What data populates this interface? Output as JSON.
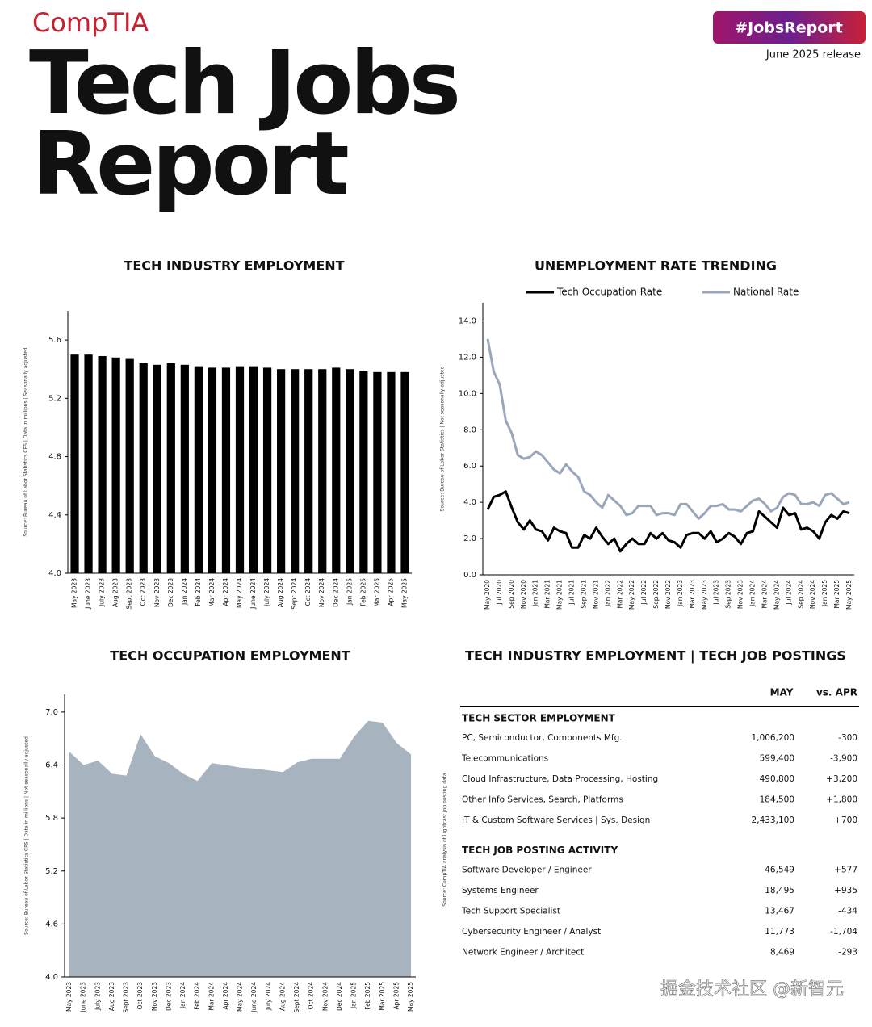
{
  "header": {
    "logo": "CompTIA",
    "title_lines": [
      "Tech Jobs",
      "Report"
    ],
    "badge": "#JobsReport",
    "release": "June 2025 release"
  },
  "chart_data": [
    {
      "type": "bar",
      "title": "TECH INDUSTRY EMPLOYMENT",
      "y_label": "Source: Bureau of Labor Statistics CES | Data in millions | Seasonally adjusted",
      "categories": [
        "May 2023",
        "June 2023",
        "July 2023",
        "Aug 2023",
        "Sept 2023",
        "Oct 2023",
        "Nov 2023",
        "Dec 2023",
        "Jan 2024",
        "Feb 2024",
        "Mar 2024",
        "Apr 2024",
        "May 2024",
        "June 2024",
        "July 2024",
        "Aug 2024",
        "Sept 2024",
        "Oct 2024",
        "Nov 2024",
        "Dec 2024",
        "Jan 2025",
        "Feb 2025",
        "Mar 2025",
        "Apr 2025",
        "May 2025"
      ],
      "values": [
        5.5,
        5.5,
        5.49,
        5.48,
        5.47,
        5.44,
        5.43,
        5.44,
        5.43,
        5.42,
        5.41,
        5.41,
        5.42,
        5.42,
        5.41,
        5.4,
        5.4,
        5.4,
        5.4,
        5.41,
        5.4,
        5.39,
        5.38,
        5.38,
        5.38
      ],
      "color": "#000000",
      "ylim": [
        4.0,
        5.8
      ],
      "yticks": [
        {
          "value": 4,
          "label": "4.0"
        },
        4.4,
        4.8,
        5.2,
        5.6
      ]
    },
    {
      "type": "line",
      "title": "UNEMPLOYMENT RATE TRENDING",
      "y_label": "Source: Bureau of Labor Statistics | Not seasonally adjusted",
      "categories": [
        "May 2020",
        null,
        "Jul 2020",
        null,
        "Sep 2020",
        null,
        "Nov 2020",
        null,
        "Jan 2021",
        null,
        "Mar 2021",
        null,
        "May 2021",
        null,
        "Jul 2021",
        null,
        "Sep 2021",
        null,
        "Nov 2021",
        null,
        "Jan 2022",
        null,
        "Mar 2022",
        null,
        "May 2022",
        null,
        "Jul 2022",
        null,
        "Sep 2022",
        null,
        "Nov 2022",
        null,
        "Jan 2023",
        null,
        "Mar 2023",
        null,
        "May 2023",
        null,
        "Jul 2023",
        null,
        "Sep 2023",
        null,
        "Nov 2023",
        null,
        "Jan 2024",
        null,
        "Mar 2024",
        null,
        "May 2024",
        null,
        "Jul 2024",
        null,
        "Sep 2024",
        null,
        "Nov 2024",
        null,
        "Jan 2025",
        null,
        "Mar 2025",
        null,
        "May 2025"
      ],
      "series": [
        {
          "name": "Tech Occupation Rate",
          "color": "#000000",
          "values": [
            3.6,
            4.3,
            4.4,
            4.6,
            3.7,
            2.9,
            2.5,
            3.0,
            2.5,
            2.4,
            1.9,
            2.6,
            2.4,
            2.3,
            1.5,
            1.5,
            2.2,
            2.0,
            2.6,
            2.1,
            1.7,
            2.0,
            1.3,
            1.7,
            2.0,
            1.7,
            1.7,
            2.3,
            2.0,
            2.3,
            1.9,
            1.8,
            1.5,
            2.2,
            2.3,
            2.3,
            2.0,
            2.4,
            1.8,
            2.0,
            2.3,
            2.1,
            1.7,
            2.3,
            2.4,
            3.5,
            3.2,
            2.9,
            2.6,
            3.7,
            3.3,
            3.4,
            2.5,
            2.6,
            2.4,
            2.0,
            2.9,
            3.3,
            3.1,
            3.5,
            3.4
          ]
        },
        {
          "name": "National Rate",
          "color": "#9aa7b8",
          "values": [
            13.0,
            11.2,
            10.5,
            8.5,
            7.8,
            6.6,
            6.4,
            6.5,
            6.8,
            6.6,
            6.2,
            5.8,
            5.6,
            6.1,
            5.7,
            5.4,
            4.6,
            4.4,
            4.0,
            3.7,
            4.4,
            4.1,
            3.8,
            3.3,
            3.4,
            3.8,
            3.8,
            3.8,
            3.3,
            3.4,
            3.4,
            3.3,
            3.9,
            3.9,
            3.5,
            3.1,
            3.4,
            3.8,
            3.8,
            3.9,
            3.6,
            3.6,
            3.5,
            3.8,
            4.1,
            4.2,
            3.9,
            3.5,
            3.7,
            4.3,
            4.5,
            4.4,
            3.9,
            3.9,
            4.0,
            3.8,
            4.4,
            4.5,
            4.2,
            3.9,
            4.0
          ]
        }
      ],
      "ylim": [
        0,
        15
      ],
      "yticks": [
        {
          "value": 0,
          "label": "0.0"
        },
        {
          "value": 2,
          "label": "2.0"
        },
        {
          "value": 4,
          "label": "4.0"
        },
        {
          "value": 6,
          "label": "6.0"
        },
        {
          "value": 8,
          "label": "8.0"
        },
        {
          "value": 10,
          "label": "10.0"
        },
        {
          "value": 12,
          "label": "12.0"
        },
        {
          "value": 14,
          "label": "14.0"
        }
      ]
    },
    {
      "type": "area",
      "title": "TECH OCCUPATION EMPLOYMENT",
      "y_label": "Source: Bureau of Labor Statistics CPS | Data in millions | Not seasonally adjusted",
      "categories": [
        "May 2023",
        "June 2023",
        "July 2023",
        "Aug 2023",
        "Sept 2023",
        "Oct 2023",
        "Nov 2023",
        "Dec 2023",
        "Jan 2024",
        "Feb 2024",
        "Mar 2024",
        "Apr 2024",
        "May 2024",
        "June 2024",
        "July 2024",
        "Aug 2024",
        "Sept 2024",
        "Oct 2024",
        "Nov 2024",
        "Dec 2024",
        "Jan 2025",
        "Feb 2025",
        "Mar 2025",
        "Apr 2025",
        "May 2025"
      ],
      "values": [
        6.55,
        6.4,
        6.45,
        6.3,
        6.28,
        6.75,
        6.5,
        6.42,
        6.3,
        6.22,
        6.42,
        6.4,
        6.37,
        6.36,
        6.34,
        6.32,
        6.43,
        6.47,
        6.47,
        6.47,
        6.72,
        6.9,
        6.88,
        6.65,
        6.52
      ],
      "color": "#a8b3c0",
      "ylim": [
        4.0,
        7.2
      ],
      "yticks": [
        {
          "value": 4,
          "label": "4.0"
        },
        4.6,
        5.2,
        5.8,
        6.4,
        {
          "value": 7,
          "label": "7.0"
        }
      ]
    }
  ],
  "table": {
    "title": "TECH INDUSTRY EMPLOYMENT | TECH JOB POSTINGS",
    "source": "Source: CompTIA analysis of Lightcast job posting data",
    "columns": [
      "MAY",
      "vs. APR"
    ],
    "sections": [
      {
        "heading": "TECH SECTOR EMPLOYMENT",
        "rows": [
          [
            "PC, Semiconductor, Components Mfg.",
            "1,006,200",
            "-300"
          ],
          [
            "Telecommunications",
            "599,400",
            "-3,900"
          ],
          [
            "Cloud Infrastructure, Data Processing, Hosting",
            "490,800",
            "+3,200"
          ],
          [
            "Other Info Services, Search, Platforms",
            "184,500",
            "+1,800"
          ],
          [
            "IT & Custom Software Services | Sys. Design",
            "2,433,100",
            "+700"
          ]
        ]
      },
      {
        "heading": "TECH JOB POSTING ACTIVITY",
        "rows": [
          [
            "Software Developer / Engineer",
            "46,549",
            "+577"
          ],
          [
            "Systems Engineer",
            "18,495",
            "+935"
          ],
          [
            "Tech Support Specialist",
            "13,467",
            "-434"
          ],
          [
            "Cybersecurity Engineer / Analyst",
            "11,773",
            "-1,704"
          ],
          [
            "Network Engineer / Architect",
            "8,469",
            "-293"
          ]
        ]
      }
    ]
  },
  "watermark": "掘金技术社区 @新智元"
}
